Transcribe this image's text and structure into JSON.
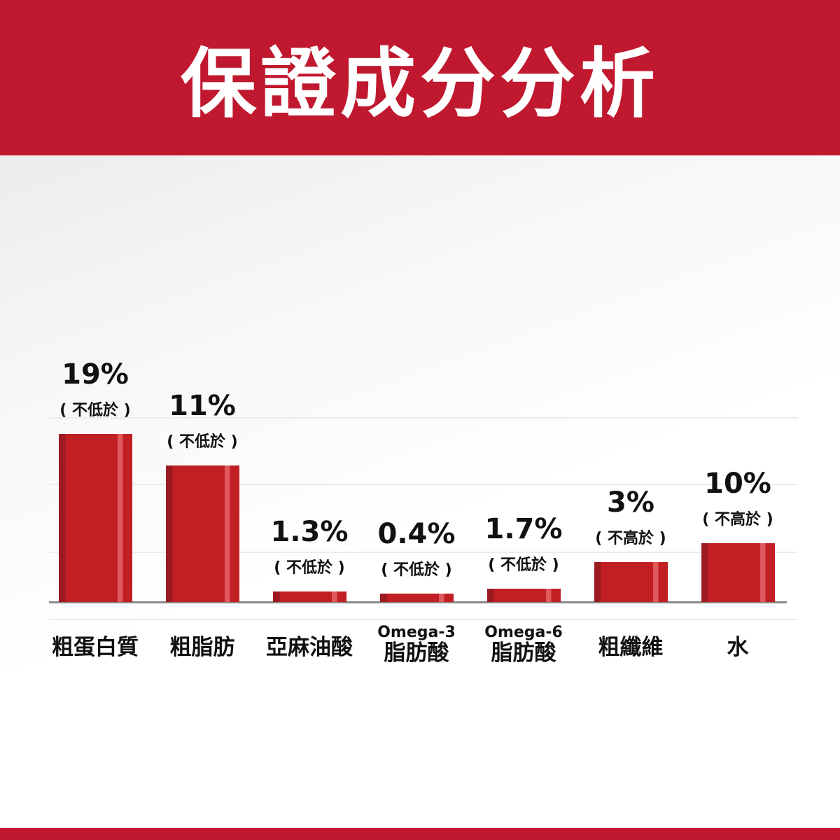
{
  "header": {
    "title": "保證成分分析"
  },
  "colors": {
    "brand": "#c0182f",
    "bar": "#c11f24"
  },
  "chart_data": {
    "type": "bar",
    "title": "保證成分分析",
    "unit": "%",
    "categories": [
      {
        "line1": "",
        "line2": "粗蛋白質"
      },
      {
        "line1": "",
        "line2": "粗脂肪"
      },
      {
        "line1": "",
        "line2": "亞麻油酸"
      },
      {
        "line1": "Omega-3",
        "line2": "脂肪酸"
      },
      {
        "line1": "Omega-6",
        "line2": "脂肪酸"
      },
      {
        "line1": "",
        "line2": "粗纖維"
      },
      {
        "line1": "",
        "line2": "水"
      }
    ],
    "values": [
      19,
      11,
      1.3,
      0.4,
      1.7,
      3,
      10
    ],
    "value_labels": [
      "19%",
      "11%",
      "1.3%",
      "0.4%",
      "1.7%",
      "3%",
      "10%"
    ],
    "qualifiers": [
      "( 不低於 )",
      "( 不低於 )",
      "( 不低於 )",
      "( 不低於 )",
      "( 不低於 )",
      "( 不高於 )",
      "( 不高於 )"
    ],
    "grid": true
  }
}
